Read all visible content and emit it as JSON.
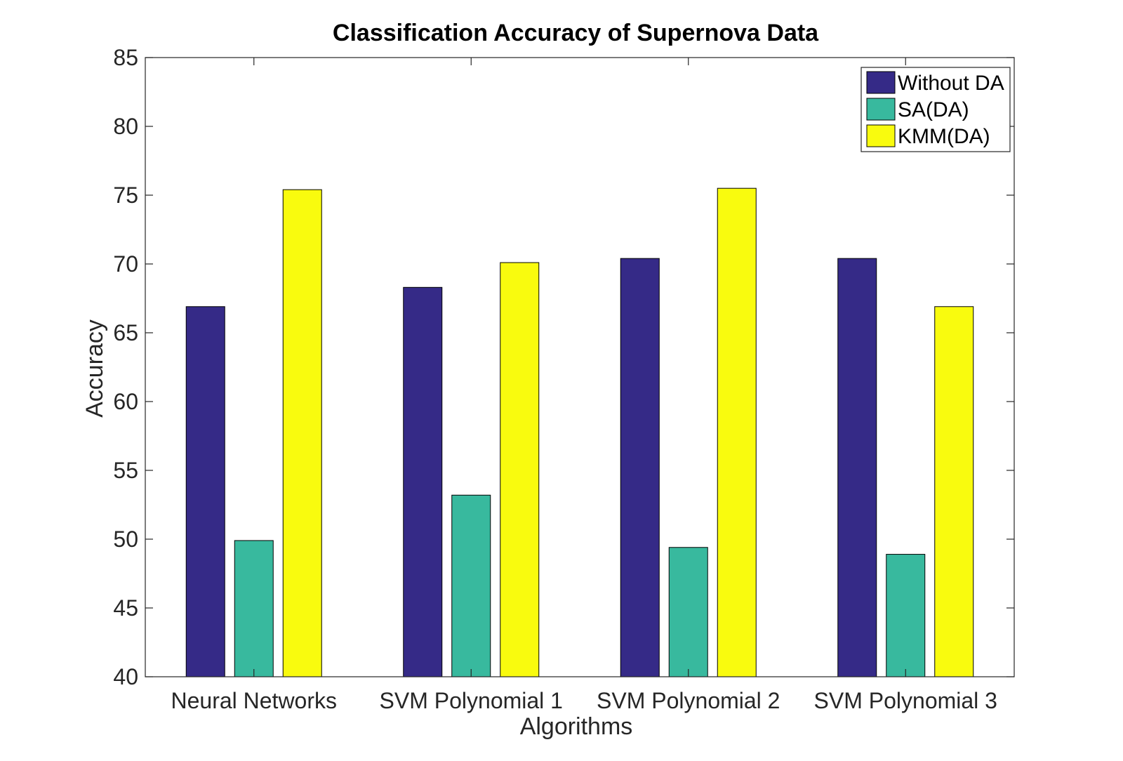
{
  "chart_data": {
    "type": "bar",
    "title": "Classification Accuracy of Supernova Data",
    "xlabel": "Algorithms",
    "ylabel": "Accuracy",
    "categories": [
      "Neural Networks",
      "SVM Polynomial 1",
      "SVM Polynomial 2",
      "SVM Polynomial 3"
    ],
    "series": [
      {
        "name": "Without DA",
        "color": "#352a87",
        "values": [
          66.9,
          68.3,
          70.4,
          70.4
        ]
      },
      {
        "name": "SA(DA)",
        "color": "#38b99e",
        "values": [
          49.9,
          53.2,
          49.4,
          48.9
        ]
      },
      {
        "name": "KMM(DA)",
        "color": "#f9fb0e",
        "values": [
          75.4,
          70.1,
          75.5,
          66.9
        ]
      }
    ],
    "ylim": [
      40,
      85
    ],
    "yticks": [
      40,
      45,
      50,
      55,
      60,
      65,
      70,
      75,
      80,
      85
    ],
    "grid": false,
    "legend_position": "top-right"
  }
}
